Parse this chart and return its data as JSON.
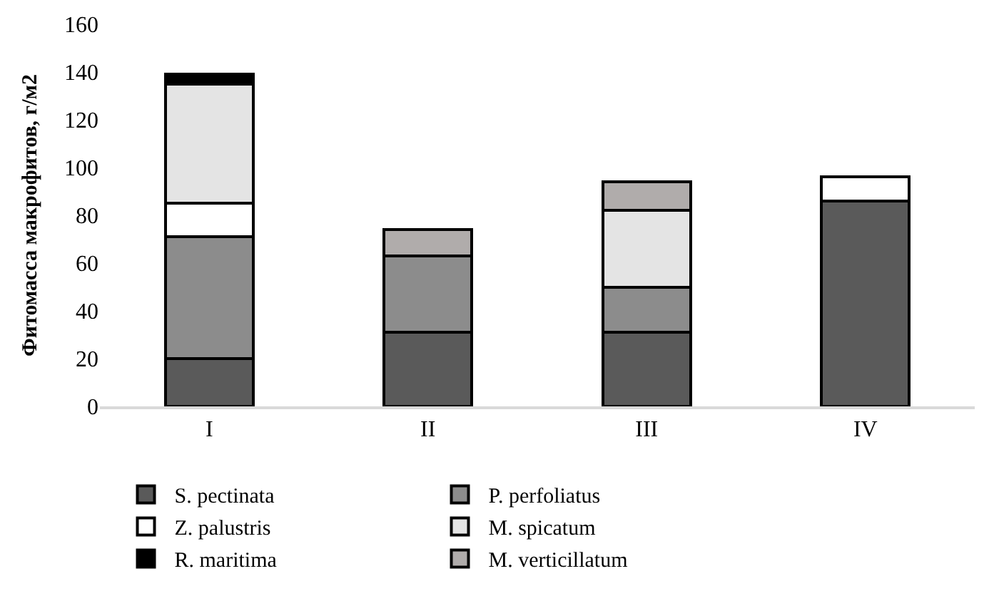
{
  "chart_data": {
    "type": "bar",
    "stacked": true,
    "ylabel": "Фитомасса макрофитов, г/м2",
    "categories": [
      "I",
      "II",
      "III",
      "IV"
    ],
    "series": [
      {
        "name": "S. pectinata",
        "color": "#5a5a5a",
        "values": [
          20,
          31,
          31,
          86
        ]
      },
      {
        "name": "P. perfoliatus",
        "color": "#8c8c8c",
        "values": [
          51,
          32,
          19,
          null
        ]
      },
      {
        "name": "Z. palustris",
        "color": "#ffffff",
        "values": [
          14,
          null,
          null,
          10
        ]
      },
      {
        "name": "M. spicatum",
        "color": "#e4e4e4",
        "values": [
          50,
          null,
          32,
          null
        ]
      },
      {
        "name": "R. maritima",
        "color": "#000000",
        "values": [
          4,
          null,
          null,
          null
        ]
      },
      {
        "name": "M. verticillatum",
        "color": "#b0acab",
        "values": [
          null,
          11,
          12,
          null
        ]
      }
    ],
    "ylim": [
      0,
      160
    ],
    "yticks": [
      0,
      20,
      40,
      60,
      80,
      100,
      120,
      140,
      160
    ],
    "legend": "bottom"
  }
}
